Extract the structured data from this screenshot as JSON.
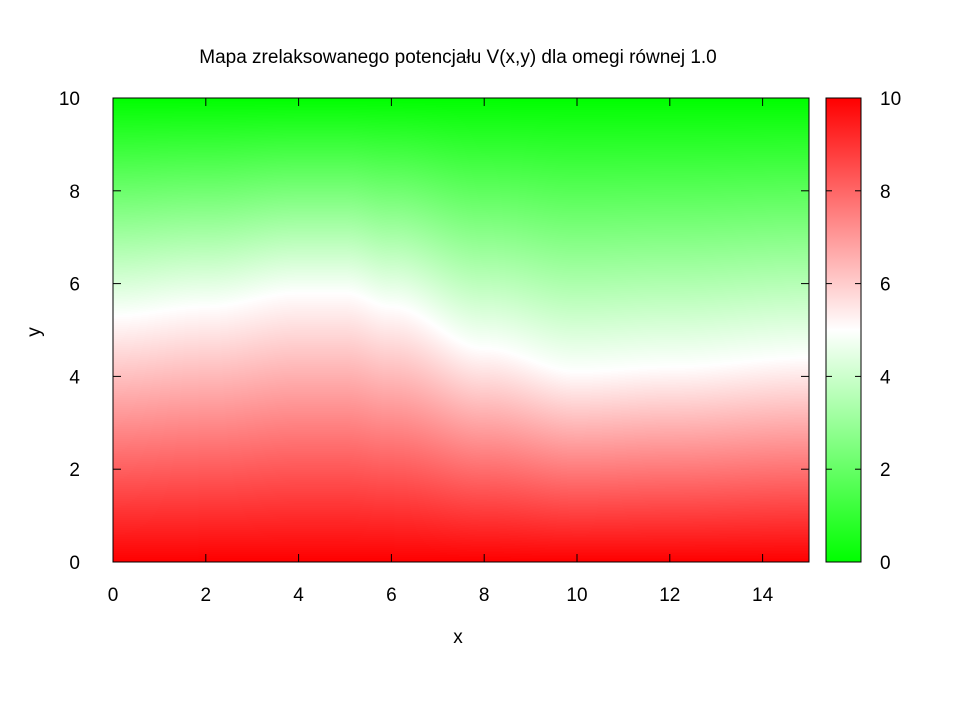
{
  "chart_data": {
    "type": "heatmap",
    "title": "Mapa zrelaksowanego potencjału V(x,y) dla omegi równej 1.0",
    "xlabel": "x",
    "ylabel": "y",
    "xlim": [
      0,
      15
    ],
    "ylim": [
      0,
      10
    ],
    "x_ticks": [
      "0",
      "2",
      "4",
      "6",
      "8",
      "10",
      "12",
      "14"
    ],
    "y_ticks": [
      "0",
      "2",
      "4",
      "6",
      "8",
      "10"
    ],
    "colorbar": {
      "range": [
        0,
        10
      ],
      "ticks": [
        "0",
        "2",
        "4",
        "6",
        "8",
        "10"
      ],
      "low_color": "#00ff00",
      "mid_color": "#ffffff",
      "high_color": "#ff0000"
    },
    "field": {
      "description_of_values": "V(x,y)",
      "x": [
        0,
        2,
        4,
        5,
        6,
        8,
        10,
        12,
        15
      ],
      "boundary_bottom": 10,
      "boundary_top": 0,
      "level5_y": [
        5.3,
        5.5,
        5.8,
        5.8,
        5.5,
        4.6,
        4.1,
        4.2,
        4.4
      ]
    }
  }
}
